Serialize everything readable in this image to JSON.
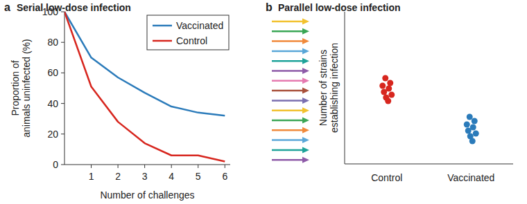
{
  "chart_data": [
    {
      "type": "line",
      "panel_label": "a",
      "title": "Serial low-dose infection",
      "x_label": "Number of challenges",
      "y_label": "Proportion of\nanimals uninfected (%)",
      "x": [
        0,
        1,
        2,
        3,
        4,
        5,
        6
      ],
      "series": [
        {
          "name": "Vaccinated",
          "color": "#2b7bba",
          "values": [
            100,
            70,
            57,
            47,
            38,
            34,
            32
          ]
        },
        {
          "name": "Control",
          "color": "#d7261e",
          "values": [
            100,
            51,
            28,
            14,
            6,
            6,
            2
          ]
        }
      ],
      "xlim": [
        0,
        6.2
      ],
      "xticks": [
        1,
        2,
        3,
        4,
        5,
        6
      ],
      "ylim": [
        0,
        100
      ],
      "yticks": [
        0,
        20,
        40,
        60,
        80,
        100
      ],
      "grid": false,
      "legend": "upper right"
    },
    {
      "type": "scatter",
      "panel_label": "b",
      "title": "Parallel low-dose infection",
      "y_label": "Number of strains\nestablishing infection",
      "categories": [
        "Control",
        "Vaccinated"
      ],
      "values": [
        [
          12.4,
          11.7,
          11.3,
          10.9,
          10.4,
          10.0,
          9.6,
          9.1
        ],
        [
          6.8,
          6.2,
          5.7,
          5.3,
          4.8,
          4.4,
          4.0,
          3.3
        ]
      ],
      "colors": [
        "#d7261e",
        "#2b7bba"
      ],
      "ylim": [
        0,
        22
      ],
      "tick_labels": "x",
      "grid": false
    }
  ]
}
